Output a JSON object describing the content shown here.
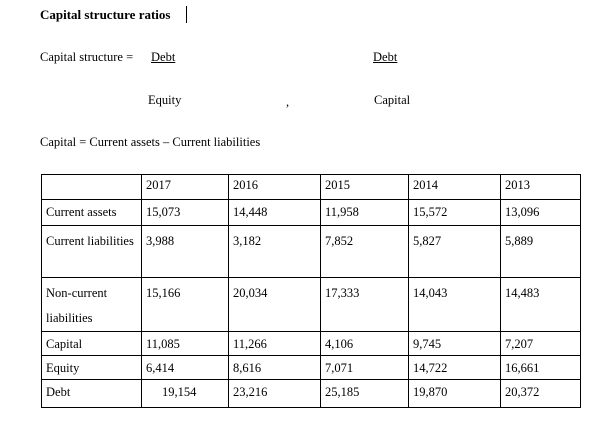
{
  "heading": "Capital structure ratios",
  "formula1": {
    "lhs": "Capital structure = ",
    "num1": "Debt",
    "den1": "Equity",
    "sep": ",",
    "num2": "Debt",
    "den2": "Capital"
  },
  "formula2": "Capital = Current assets – Current liabilities",
  "table": {
    "years": [
      "2017",
      "2016",
      "2015",
      "2014",
      "2013"
    ],
    "rows": [
      {
        "label": "Current assets",
        "values": [
          "15,073",
          "14,448",
          "11,958",
          "15,572",
          "13,096"
        ]
      },
      {
        "label": "Current liabilities",
        "values": [
          "3,988",
          "3,182",
          "7,852",
          "5,827",
          "5,889"
        ]
      },
      {
        "label": "Non-current liabilities",
        "values": [
          "15,166",
          "20,034",
          "17,333",
          "14,043",
          "14,483"
        ]
      },
      {
        "label": "Capital",
        "values": [
          "11,085",
          "11,266",
          "4,106",
          "9,745",
          "7,207"
        ]
      },
      {
        "label": "Equity",
        "values": [
          "6,414",
          "8,616",
          "7,071",
          "14,722",
          "16,661"
        ]
      },
      {
        "label": "Debt",
        "values": [
          "19,154",
          "23,216",
          "25,185",
          "19,870",
          "20,372"
        ]
      }
    ]
  }
}
